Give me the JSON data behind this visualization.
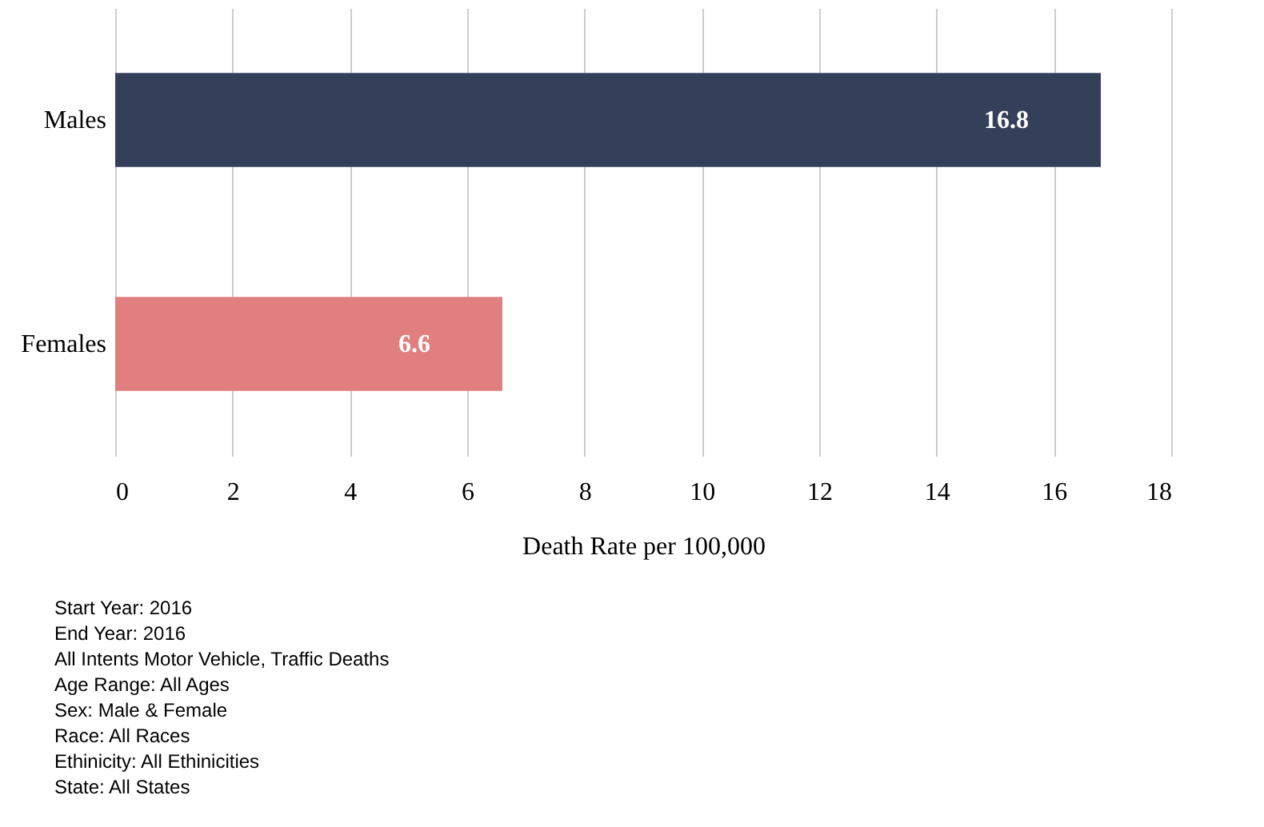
{
  "chart_data": {
    "type": "bar",
    "orientation": "horizontal",
    "xlabel": "Death Rate per 100,000",
    "categories": [
      "Males",
      "Females"
    ],
    "values": [
      16.8,
      6.6
    ],
    "colors": [
      "#34405a",
      "#e07f7e"
    ],
    "xlim": [
      0,
      18
    ],
    "xticks": [
      0,
      2,
      4,
      6,
      8,
      10,
      12,
      14,
      16,
      18
    ],
    "grid": "x",
    "data_labels": true,
    "annotations": [
      "Start Year: 2016",
      "End Year: 2016",
      "All Intents Motor Vehicle, Traffic Deaths",
      "Age Range: All Ages",
      "Sex: Male & Female",
      "Race: All Races",
      "Ethinicity: All Ethinicities",
      "State: All States"
    ]
  }
}
